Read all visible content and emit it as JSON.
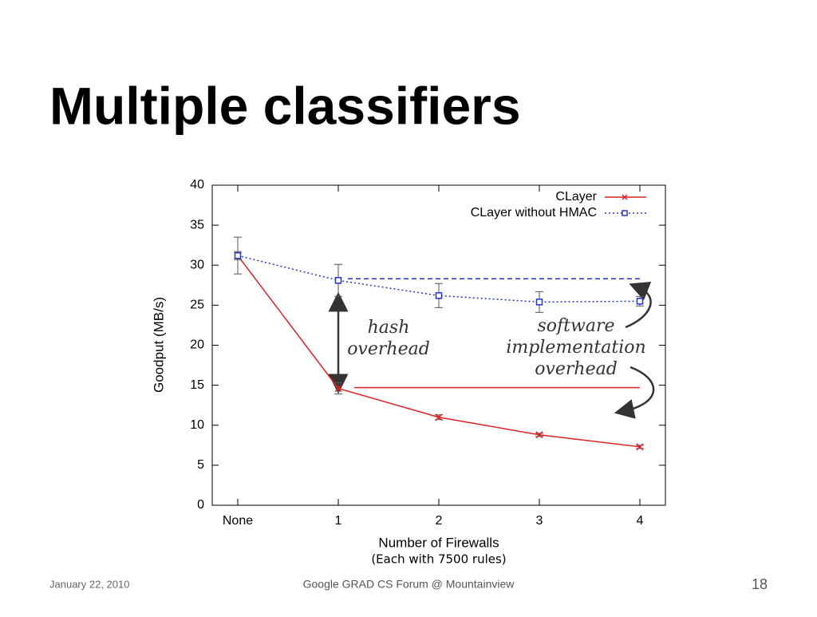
{
  "slide": {
    "title": "Multiple classifiers",
    "date": "January 22, 2010",
    "venue": "Google GRAD CS Forum @ Mountainview",
    "page": "18"
  },
  "chart_data": {
    "type": "line",
    "xlabel": "Number of Firewalls",
    "xlabel_note": "(Each with 7500 rules)",
    "ylabel": "Goodput (MB/s)",
    "categories": [
      "None",
      "1",
      "2",
      "3",
      "4"
    ],
    "series": [
      {
        "name": "CLayer",
        "color": "#dd2222",
        "marker": "x",
        "line": "solid",
        "values": [
          31.2,
          14.6,
          11.0,
          8.8,
          7.3
        ],
        "errors": [
          0.5,
          0.7,
          0.3,
          0.2,
          0.2
        ]
      },
      {
        "name": "CLayer without HMAC",
        "color": "#2233cc",
        "marker": "square",
        "line": "dotted",
        "values": [
          31.2,
          28.1,
          26.2,
          25.4,
          25.5
        ],
        "errors": [
          2.3,
          2.0,
          1.5,
          1.3,
          0.6
        ]
      }
    ],
    "reference_lines": [
      {
        "value": 28.3,
        "color": "#2233cc"
      },
      {
        "value": 14.7,
        "color": "#dd2222"
      }
    ],
    "annotations": [
      {
        "lines": [
          "hash",
          "overhead"
        ]
      },
      {
        "lines": [
          "software",
          "implementation",
          "overhead"
        ]
      }
    ],
    "ylim": [
      0,
      40
    ],
    "yticks": [
      0,
      5,
      10,
      15,
      20,
      25,
      30,
      35,
      40
    ],
    "legend": "top-right"
  }
}
